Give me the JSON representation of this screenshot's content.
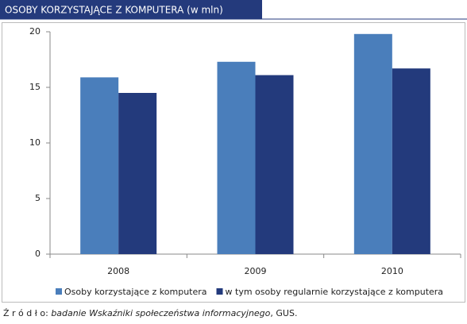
{
  "chart_data": {
    "type": "bar",
    "title": "OSOBY KORZYSTAJĄCE Z KOMPUTERA (w mln)",
    "categories": [
      "2008",
      "2009",
      "2010"
    ],
    "series": [
      {
        "name": "Osoby korzystające z komputera",
        "color": "#4a7ebb",
        "values": [
          15.9,
          17.3,
          19.8
        ]
      },
      {
        "name": "w tym osoby regularnie korzystające z komputera",
        "color": "#233a7c",
        "values": [
          14.5,
          16.1,
          16.7
        ]
      }
    ],
    "ylim": [
      0,
      20
    ],
    "yticks": [
      0,
      5,
      10,
      15,
      20
    ],
    "grid": false,
    "legend": "bottom",
    "source": {
      "label": "Ź r ó d ł o:",
      "italic": "badanie Wskaźniki społeczeństwa informacyjnego",
      "rest": ", GUS."
    }
  }
}
